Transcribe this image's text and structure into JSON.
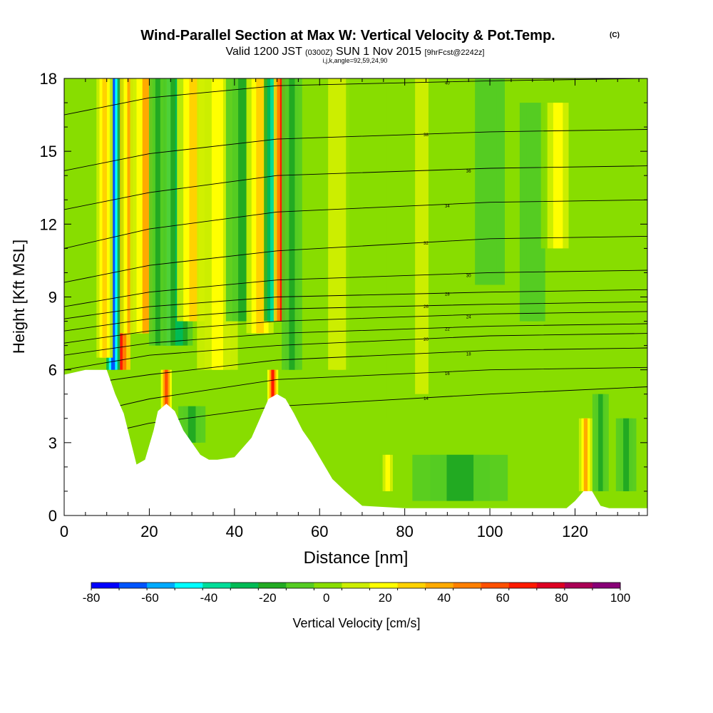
{
  "chart_data": {
    "type": "heatmap",
    "title": "Wind-Parallel Section at Max W: Vertical Velocity & Pot.Temp.",
    "title_mark": "(C)",
    "subtitle": {
      "valid_prefix": "Valid 1200 JST",
      "utc": "(0300Z)",
      "date": "SUN 1 Nov 2015",
      "forecast": "[9hrFcst@2242z]",
      "params": "i,j,k,angle=92,59,24,90"
    },
    "xlabel": "Distance [nm]",
    "ylabel": "Height [Kft MSL]",
    "xlim": [
      0,
      137
    ],
    "ylim": [
      0,
      18
    ],
    "x_ticks": [
      0,
      20,
      40,
      60,
      80,
      100,
      120
    ],
    "y_ticks": [
      0,
      3,
      6,
      9,
      12,
      15,
      18
    ],
    "colorbar": {
      "label": "Vertical Velocity [cm/s]",
      "min": -80,
      "max": 100,
      "tick_labels": [
        "-80",
        "-60",
        "-40",
        "-20",
        "0",
        "20",
        "40",
        "60",
        "80",
        "100"
      ],
      "colors": [
        "#0000ff",
        "#0055ff",
        "#00aaff",
        "#00ffff",
        "#00dd99",
        "#00bb55",
        "#22aa22",
        "#55cc22",
        "#88dd00",
        "#ccee00",
        "#ffff00",
        "#ffd200",
        "#ffaa00",
        "#ff7f00",
        "#ff5000",
        "#ff1a00",
        "#dd0022",
        "#aa0055",
        "#880077"
      ]
    },
    "terrain_profile": {
      "x": [
        0,
        5,
        10,
        12,
        14,
        16,
        17,
        19,
        21,
        22,
        24,
        26,
        28,
        30,
        32,
        34,
        36,
        40,
        44,
        46,
        48,
        50,
        52,
        54,
        56,
        58,
        60,
        63,
        66,
        70,
        80,
        90,
        100,
        110,
        118,
        120,
        122,
        124,
        126,
        128,
        130,
        137
      ],
      "y": [
        5.8,
        6.0,
        6.0,
        5.0,
        4.2,
        2.8,
        2.1,
        2.3,
        3.5,
        4.3,
        4.6,
        4.3,
        3.5,
        3.0,
        2.5,
        2.3,
        2.3,
        2.4,
        3.2,
        4.0,
        4.8,
        5.0,
        4.8,
        4.2,
        3.5,
        3.0,
        2.4,
        1.5,
        1.0,
        0.4,
        0.3,
        0.3,
        0.3,
        0.3,
        0.3,
        0.6,
        1.0,
        1.0,
        0.4,
        0.3,
        0.3,
        0.3
      ]
    },
    "vertical_velocity_features": [
      {
        "x": 13,
        "x_width": 1.6,
        "y_bottom": 6.0,
        "y_top": 18,
        "w": 70
      },
      {
        "x": 11.5,
        "x_width": 1.0,
        "y_bottom": 6.0,
        "y_top": 18,
        "w": -70
      },
      {
        "x": 15.5,
        "x_width": 1.5,
        "y_bottom": 7.5,
        "y_top": 18,
        "w": 35
      },
      {
        "x": 9.5,
        "x_width": 1.2,
        "y_bottom": 6.5,
        "y_top": 18,
        "w": 30
      },
      {
        "x": 19.5,
        "x_width": 2.5,
        "y_bottom": 7.5,
        "y_top": 18,
        "w": 35
      },
      {
        "x": 24.5,
        "x_width": 1.3,
        "y_bottom": 7.0,
        "y_top": 18,
        "w": -45
      },
      {
        "x": 27.0,
        "x_width": 2.0,
        "y_bottom": 7.0,
        "y_top": 18,
        "w": -25
      },
      {
        "x": 22.0,
        "x_width": 1.3,
        "y_bottom": 7.0,
        "y_top": 18,
        "w": -15
      },
      {
        "x": 30.5,
        "x_width": 2.5,
        "y_bottom": 8.0,
        "y_top": 18,
        "w": 30
      },
      {
        "x": 36.0,
        "x_width": 3.0,
        "y_bottom": 6.0,
        "y_top": 18,
        "w": 20
      },
      {
        "x": 42.0,
        "x_width": 2.5,
        "y_bottom": 8.0,
        "y_top": 18,
        "w": -15
      },
      {
        "x": 46.0,
        "x_width": 2.0,
        "y_bottom": 7.5,
        "y_top": 18,
        "w": 30
      },
      {
        "x": 49.0,
        "x_width": 1.3,
        "y_bottom": 8.0,
        "y_top": 18,
        "w": -40
      },
      {
        "x": 51.3,
        "x_width": 1.3,
        "y_bottom": 8.0,
        "y_top": 18,
        "w": 70
      },
      {
        "x": 53.5,
        "x_width": 1.5,
        "y_bottom": 6.0,
        "y_top": 18,
        "w": -20
      },
      {
        "x": 24.0,
        "x_width": 0.8,
        "y_bottom": 4.2,
        "y_top": 6.0,
        "w": 55
      },
      {
        "x": 49.0,
        "x_width": 0.8,
        "y_bottom": 4.5,
        "y_top": 6.0,
        "w": 65
      },
      {
        "x": 64.5,
        "x_width": 2.5,
        "y_bottom": 6.0,
        "y_top": 18,
        "w": 10
      },
      {
        "x": 71.0,
        "x_width": 3.0,
        "y_bottom": 4.0,
        "y_top": 18,
        "w": -3
      },
      {
        "x": 84.0,
        "x_width": 3.5,
        "y_bottom": 5.0,
        "y_top": 18,
        "w": 8
      },
      {
        "x": 100.0,
        "x_width": 3.5,
        "y_bottom": 9.5,
        "y_top": 18,
        "w": -8
      },
      {
        "x": 110.0,
        "x_width": 3.0,
        "y_bottom": 8.0,
        "y_top": 17,
        "w": -8
      },
      {
        "x": 116.0,
        "x_width": 2.5,
        "y_bottom": 11.0,
        "y_top": 17,
        "w": 15
      },
      {
        "x": 122.5,
        "x_width": 1.0,
        "y_bottom": 1.0,
        "y_top": 4.0,
        "w": 35
      },
      {
        "x": 126.0,
        "x_width": 1.2,
        "y_bottom": 1.0,
        "y_top": 5.0,
        "w": -15
      },
      {
        "x": 93.0,
        "x_width": 7.0,
        "y_bottom": 0.6,
        "y_top": 2.5,
        "w": -15
      },
      {
        "x": 30.0,
        "x_width": 2.0,
        "y_bottom": 3.0,
        "y_top": 4.5,
        "w": -20
      },
      {
        "x": 76.0,
        "x_width": 1.2,
        "y_bottom": 1.0,
        "y_top": 2.5,
        "w": 15
      },
      {
        "x": 132.0,
        "x_width": 1.5,
        "y_bottom": 1.0,
        "y_top": 4.0,
        "w": -15
      }
    ],
    "theta_contours": [
      {
        "label": "14",
        "y_levels": [
          3.0,
          3.8,
          4.5,
          5.0,
          5.3
        ]
      },
      {
        "label": "16",
        "y_levels": [
          4.0,
          4.8,
          5.6,
          6.0,
          6.1
        ]
      },
      {
        "label": "18",
        "y_levels": [
          5.3,
          5.8,
          6.4,
          6.8,
          6.9
        ]
      },
      {
        "label": "20",
        "y_levels": [
          6.0,
          6.6,
          7.0,
          7.4,
          7.5
        ]
      },
      {
        "label": "22",
        "y_levels": [
          6.6,
          7.1,
          7.5,
          7.8,
          7.9
        ]
      },
      {
        "label": "24",
        "y_levels": [
          7.1,
          7.6,
          8.0,
          8.3,
          8.4
        ]
      },
      {
        "label": "26",
        "y_levels": [
          7.6,
          8.1,
          8.5,
          8.7,
          8.8
        ]
      },
      {
        "label": "28",
        "y_levels": [
          8.1,
          8.6,
          9.0,
          9.2,
          9.3
        ]
      },
      {
        "label": "30",
        "y_levels": [
          8.6,
          9.2,
          9.7,
          10.0,
          10.1
        ]
      },
      {
        "label": "32",
        "y_levels": [
          9.6,
          10.3,
          10.9,
          11.4,
          11.5
        ]
      },
      {
        "label": "34",
        "y_levels": [
          11.0,
          11.8,
          12.5,
          12.9,
          13.0
        ]
      },
      {
        "label": "36",
        "y_levels": [
          12.6,
          13.3,
          14.0,
          14.3,
          14.4
        ]
      },
      {
        "label": "38",
        "y_levels": [
          14.2,
          14.9,
          15.5,
          15.8,
          15.9
        ]
      },
      {
        "label": "40",
        "y_levels": [
          16.5,
          17.2,
          17.7,
          17.9,
          18.0
        ]
      }
    ]
  }
}
